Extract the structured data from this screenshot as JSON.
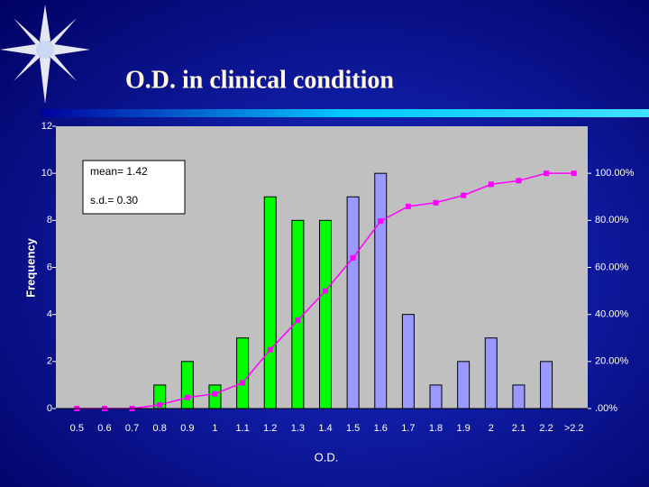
{
  "chart_data": {
    "type": "histogram-pareto",
    "title": "O.D. in clinical condition",
    "x_label": "O.D.",
    "y_label": "Frequency",
    "annotations": [
      "mean= 1.42",
      "s.d.= 0.30"
    ],
    "categories": [
      "0.5",
      "0.6",
      "0.7",
      "0.8",
      "0.9",
      "1",
      "1.1",
      "1.2",
      "1.3",
      "1.4",
      "1.5",
      "1.6",
      "1.7",
      "1.8",
      "1.9",
      "2",
      "2.1",
      "2.2",
      ">2.2"
    ],
    "series": [
      {
        "type": "bar",
        "colors": [
          "#00ff00",
          "#00ff00",
          "#00ff00",
          "#00ff00",
          "#00ff00",
          "#00ff00",
          "#00ff00",
          "#00ff00",
          "#00ff00",
          "#00ff00",
          "#9999ff",
          "#9999ff",
          "#9999ff",
          "#9999ff",
          "#9999ff",
          "#9999ff",
          "#9999ff",
          "#9999ff",
          "#9999ff"
        ],
        "values": [
          0,
          0,
          0,
          1,
          2,
          1,
          3,
          9,
          8,
          8,
          9,
          10,
          4,
          1,
          2,
          3,
          1,
          2,
          0
        ]
      },
      {
        "type": "line",
        "axis": "y2",
        "color": "#ff00ff",
        "values": [
          0,
          0,
          0,
          1.5625,
          4.6875,
          6.25,
          10.9375,
          25,
          37.5,
          50,
          64.0625,
          79.6875,
          85.9375,
          87.5,
          90.625,
          95.3125,
          96.875,
          100,
          100
        ]
      }
    ],
    "ylim": [
      0,
      12
    ],
    "yticks": [
      0,
      2,
      4,
      6,
      8,
      10,
      12
    ],
    "y2lim": [
      0,
      120
    ],
    "y2ticks": [
      {
        "value": 0,
        "label": ".00%"
      },
      {
        "value": 20,
        "label": "20.00%"
      },
      {
        "value": 40,
        "label": "40.00%"
      },
      {
        "value": 60,
        "label": "60.00%"
      },
      {
        "value": 80,
        "label": "80.00%"
      },
      {
        "value": 100,
        "label": "100.00%"
      }
    ]
  }
}
